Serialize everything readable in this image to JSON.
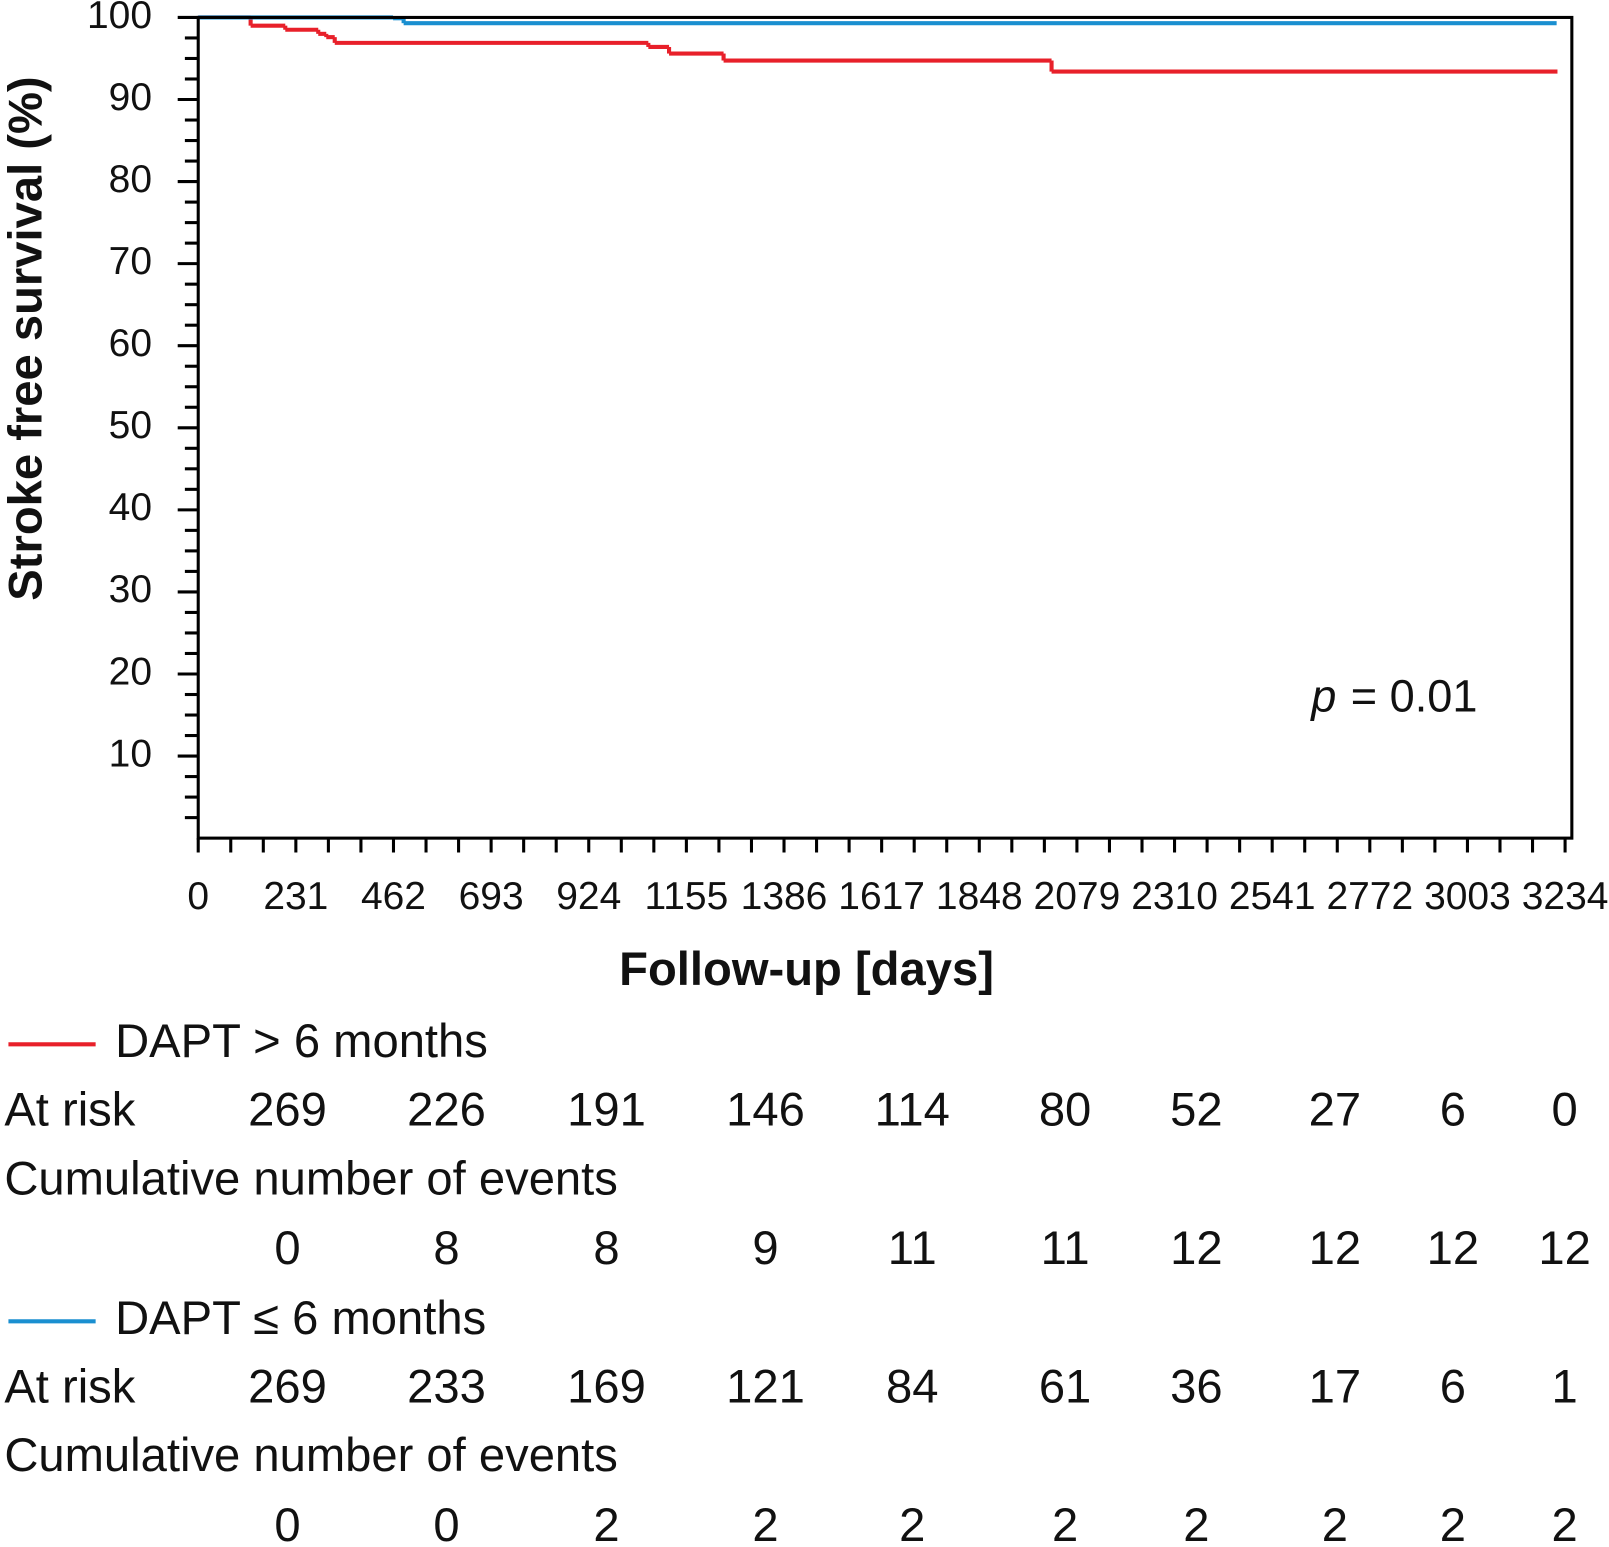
{
  "chart_data": {
    "type": "step",
    "y_label": "Stroke free survival (%)",
    "x_label": "Follow-up [days]",
    "annotation": {
      "variable": "p",
      "text": "= 0.01"
    },
    "xlim": [
      0,
      3250
    ],
    "xticks": [
      0,
      231,
      462,
      693,
      924,
      1155,
      1386,
      1617,
      1848,
      2079,
      2310,
      2541,
      2772,
      3003,
      3234
    ],
    "ylim": [
      0,
      100
    ],
    "yticks": [
      10,
      20,
      30,
      40,
      50,
      60,
      70,
      80,
      90,
      100
    ],
    "series": [
      {
        "name": "DAPT > 6 months",
        "color": "#e8202a",
        "x": [
          0,
          124,
          206,
          284,
          303,
          323,
          1065,
          1114,
          1243,
          2019,
          3216
        ],
        "values": [
          100,
          99,
          98.5,
          98,
          97.6,
          96.9,
          96.4,
          95.6,
          94.75,
          93.4,
          93.4
        ],
        "at_risk": [
          269,
          226,
          191,
          146,
          114,
          80,
          52,
          27,
          6,
          0
        ],
        "events": [
          0,
          8,
          8,
          9,
          11,
          11,
          12,
          12,
          12,
          12
        ]
      },
      {
        "name": "DAPT ≤ 6 months",
        "color": "#1a8fd0",
        "x": [
          0,
          461,
          486,
          3214
        ],
        "values": [
          100,
          99.9,
          99.3,
          99.3
        ],
        "at_risk": [
          269,
          233,
          169,
          121,
          84,
          61,
          36,
          17,
          6,
          1
        ],
        "events": [
          0,
          0,
          2,
          2,
          2,
          2,
          2,
          2,
          2,
          2
        ]
      }
    ],
    "risk_table": {
      "row_labels": [
        "At risk",
        "Cumulative number of events"
      ]
    }
  }
}
